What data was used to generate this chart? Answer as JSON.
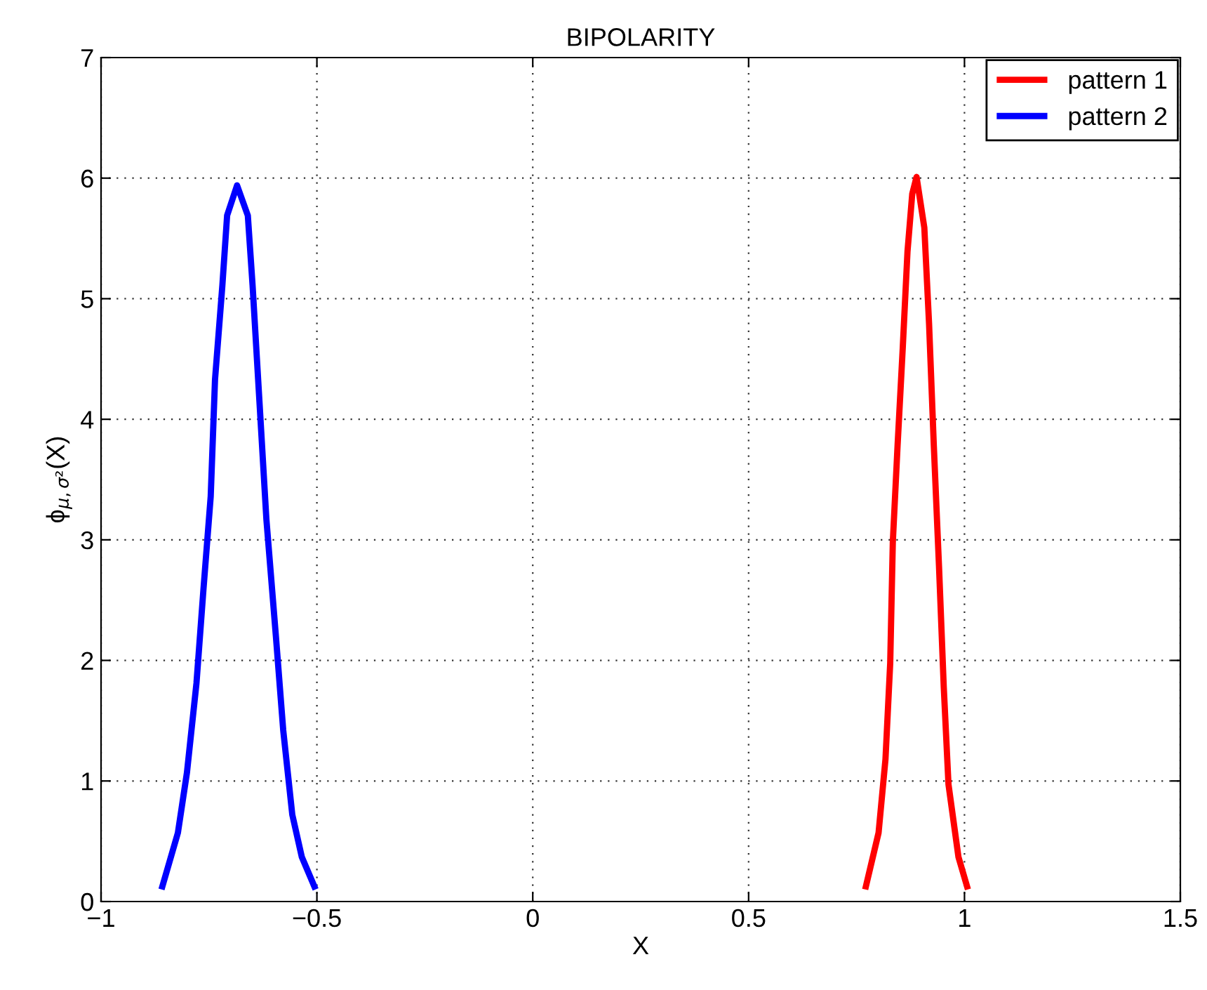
{
  "chart_data": {
    "type": "line",
    "title": "BIPOLARITY",
    "xlabel": "X",
    "ylabel": "ϕ$_{μ,σ²}$(X)",
    "series": [
      {
        "name": "pattern 1",
        "color": "#ff0000",
        "x": [
          0.77,
          0.801,
          0.817,
          0.828,
          0.834,
          0.845,
          0.857,
          0.868,
          0.879,
          0.889,
          0.907,
          0.918,
          0.929,
          0.941,
          0.952,
          0.963,
          0.986,
          1.008
        ],
        "values": [
          0.1,
          0.57,
          1.18,
          1.98,
          2.98,
          3.78,
          4.59,
          5.39,
          5.87,
          6.01,
          5.59,
          4.79,
          3.78,
          2.78,
          1.78,
          0.97,
          0.37,
          0.1
        ]
      },
      {
        "name": "pattern 2",
        "color": "#0000ff",
        "x": [
          -0.86,
          -0.822,
          -0.801,
          -0.779,
          -0.763,
          -0.746,
          -0.736,
          -0.719,
          -0.708,
          -0.685,
          -0.66,
          -0.649,
          -0.633,
          -0.617,
          -0.595,
          -0.578,
          -0.557,
          -0.535,
          -0.503
        ],
        "values": [
          0.1,
          0.57,
          1.07,
          1.81,
          2.58,
          3.36,
          4.33,
          5.11,
          5.69,
          5.94,
          5.69,
          5.11,
          4.14,
          3.17,
          2.2,
          1.42,
          0.72,
          0.37,
          0.1
        ]
      }
    ],
    "xlim": [
      -1,
      1.5
    ],
    "xticks": [
      {
        "value": -1,
        "label": "−1"
      },
      {
        "value": -0.5,
        "label": "−0.5"
      },
      0,
      0.5,
      1,
      1.5
    ],
    "ylim": [
      0,
      7
    ],
    "yticks": [
      0,
      1,
      2,
      3,
      4,
      5,
      6,
      7
    ],
    "grid": true,
    "legend": "top right",
    "marker": "none",
    "line_style": "solid"
  }
}
